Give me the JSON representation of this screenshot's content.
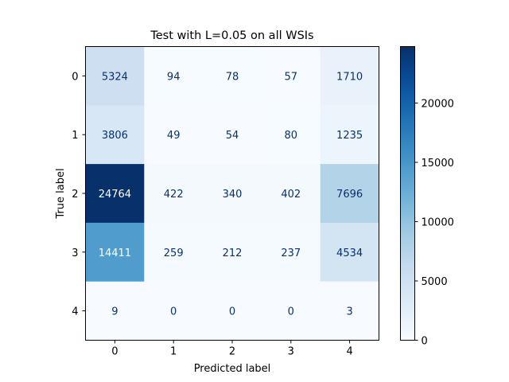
{
  "chart_data": {
    "type": "heatmap",
    "title": "Test with L=0.05 on all WSIs",
    "xlabel": "Predicted label",
    "ylabel": "True label",
    "x_categories": [
      "0",
      "1",
      "2",
      "3",
      "4"
    ],
    "y_categories": [
      "0",
      "1",
      "2",
      "3",
      "4"
    ],
    "values": [
      [
        5324,
        94,
        78,
        57,
        1710
      ],
      [
        3806,
        49,
        54,
        80,
        1235
      ],
      [
        24764,
        422,
        340,
        402,
        7696
      ],
      [
        14411,
        259,
        212,
        237,
        4534
      ],
      [
        9,
        0,
        0,
        0,
        3
      ]
    ],
    "colormap": "Blues",
    "colorbar": {
      "range": [
        0,
        24764
      ],
      "ticks": [
        0,
        5000,
        10000,
        15000,
        20000
      ],
      "tick_labels": [
        "0",
        "5000",
        "10000",
        "15000",
        "20000"
      ]
    },
    "text_color_light_bg": "#08306b",
    "text_color_dark_bg": "#ffffff"
  }
}
